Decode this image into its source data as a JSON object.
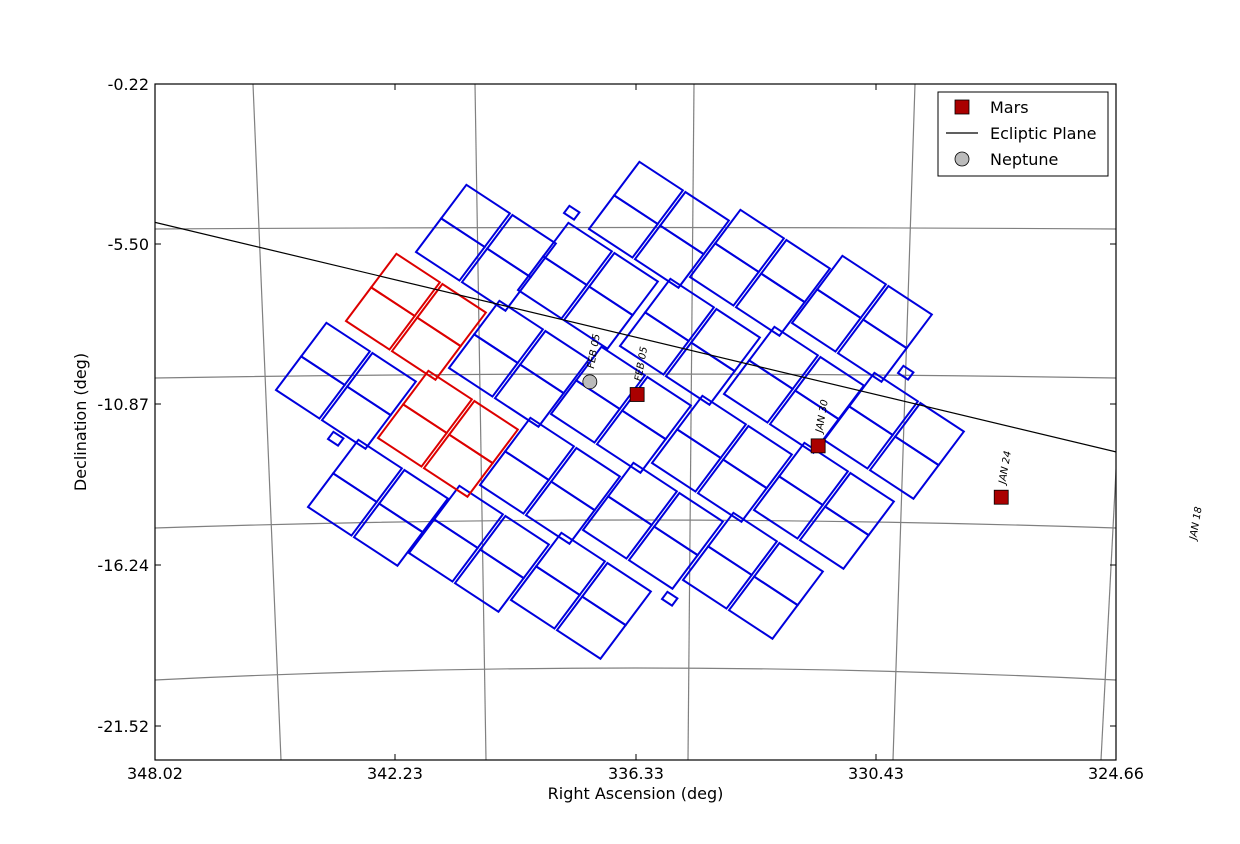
{
  "chart_data": {
    "type": "scatter",
    "xlabel": "Right Ascension (deg)",
    "ylabel": "Declination (deg)",
    "xlim": [
      348.02,
      324.66
    ],
    "ylim": [
      -22.6,
      -0.22
    ],
    "x_ticks": [
      "348.02",
      "342.23",
      "336.33",
      "330.43",
      "324.66"
    ],
    "y_ticks": [
      "-0.22",
      "-5.50",
      "-10.87",
      "-16.24",
      "-21.52"
    ],
    "grid": "curved RA/Dec coordinate grid",
    "legend_position": "top-right",
    "legend": [
      {
        "label": "Mars",
        "marker": "square",
        "color": "#aa0000"
      },
      {
        "label": "Ecliptic Plane",
        "marker": "line",
        "color": "#000000"
      },
      {
        "label": "Neptune",
        "marker": "circle",
        "color": "#bbbbbb"
      }
    ],
    "ecliptic_plane": [
      {
        "ra": 348.02,
        "dec": -4.8
      },
      {
        "ra": 324.66,
        "dec": -12.4
      }
    ],
    "series": [
      {
        "name": "Mars",
        "points": [
          {
            "ra": 336.3,
            "dec": -10.5,
            "label": "FEB 05"
          },
          {
            "ra": 331.9,
            "dec": -12.2,
            "label": "JAN 30"
          },
          {
            "ra": 327.45,
            "dec": -13.9,
            "label": "JAN 24"
          }
        ]
      },
      {
        "name": "Neptune",
        "points": [
          {
            "ra": 337.45,
            "dec": -10.08,
            "label": "FEB 05"
          }
        ]
      }
    ],
    "off_axis_labels": [
      "JAN 18"
    ],
    "fields": {
      "blue_color": "#0000dd",
      "red_color": "#dd0000",
      "count_blue_quads": 20,
      "count_red_quads": 2
    }
  }
}
